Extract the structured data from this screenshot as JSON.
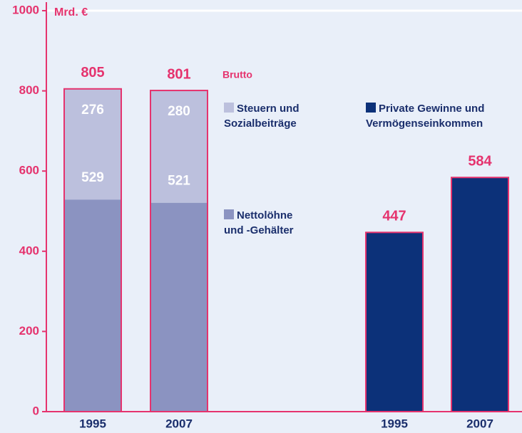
{
  "chart_data": {
    "type": "bar",
    "y_label": "Mrd. €",
    "categories": [
      "1995",
      "2007",
      "1995",
      "2007"
    ],
    "series": [
      {
        "name": "Nettolöhne und -Gehälter",
        "color": "#8b93c1",
        "values": [
          529,
          521,
          null,
          null
        ]
      },
      {
        "name": "Steuern und Sozialbeiträge",
        "color": "#bcc0dd",
        "values": [
          276,
          280,
          null,
          null
        ]
      },
      {
        "name": "Private Gewinne und Vermögenseinkommen",
        "color": "#0c3179",
        "values": [
          null,
          null,
          447,
          584
        ]
      }
    ],
    "totals": [
      805,
      801,
      null,
      null
    ],
    "totals_label": "Brutto",
    "stacked": true,
    "outline_color": "#e5336e",
    "ylim": [
      0,
      1000
    ],
    "yticks": [
      0,
      200,
      400,
      600,
      800,
      1000
    ],
    "grid": false
  }
}
